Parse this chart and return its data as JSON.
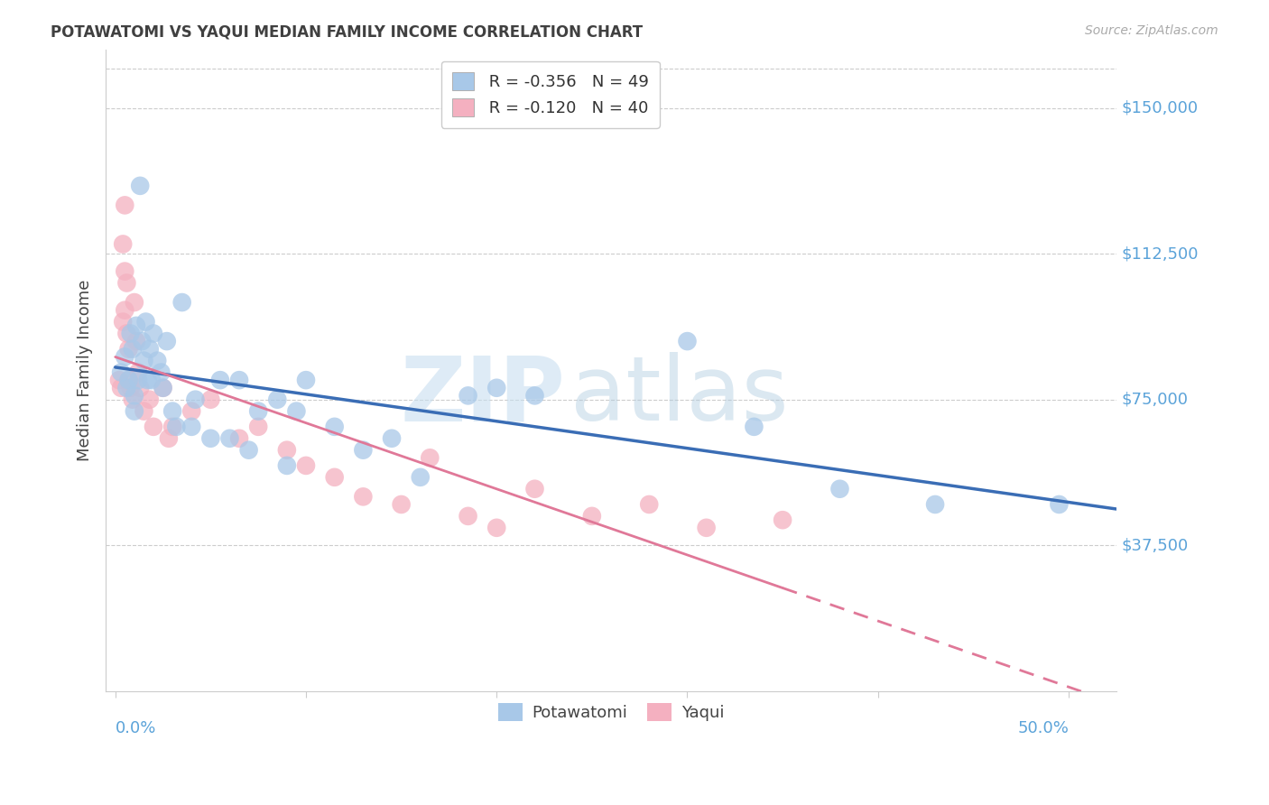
{
  "title": "POTAWATOMI VS YAQUI MEDIAN FAMILY INCOME CORRELATION CHART",
  "source": "Source: ZipAtlas.com",
  "ylabel": "Median Family Income",
  "ytick_labels": [
    "$37,500",
    "$75,000",
    "$112,500",
    "$150,000"
  ],
  "ytick_values": [
    37500,
    75000,
    112500,
    150000
  ],
  "ymin": 0,
  "ymax": 165000,
  "xmin": -0.005,
  "xmax": 0.525,
  "legend_blue_r": "-0.356",
  "legend_blue_n": "49",
  "legend_pink_r": "-0.120",
  "legend_pink_n": "40",
  "blue_scatter_color": "#a8c8e8",
  "pink_scatter_color": "#f4b0c0",
  "blue_line_color": "#3a6db5",
  "pink_line_color": "#e07898",
  "axis_label_color": "#5ba3d9",
  "title_color": "#404040",
  "grid_color": "#cccccc",
  "source_color": "#aaaaaa",
  "potawatomi_x": [
    0.003,
    0.005,
    0.006,
    0.007,
    0.008,
    0.009,
    0.01,
    0.01,
    0.011,
    0.012,
    0.013,
    0.014,
    0.015,
    0.016,
    0.017,
    0.018,
    0.019,
    0.02,
    0.022,
    0.024,
    0.025,
    0.027,
    0.03,
    0.032,
    0.035,
    0.04,
    0.042,
    0.05,
    0.055,
    0.06,
    0.065,
    0.07,
    0.075,
    0.085,
    0.09,
    0.095,
    0.1,
    0.115,
    0.13,
    0.145,
    0.16,
    0.185,
    0.2,
    0.22,
    0.3,
    0.335,
    0.38,
    0.43,
    0.495
  ],
  "potawatomi_y": [
    82000,
    86000,
    78000,
    80000,
    92000,
    88000,
    76000,
    72000,
    94000,
    80000,
    130000,
    90000,
    85000,
    95000,
    80000,
    88000,
    80000,
    92000,
    85000,
    82000,
    78000,
    90000,
    72000,
    68000,
    100000,
    68000,
    75000,
    65000,
    80000,
    65000,
    80000,
    62000,
    72000,
    75000,
    58000,
    72000,
    80000,
    68000,
    62000,
    65000,
    55000,
    76000,
    78000,
    76000,
    90000,
    68000,
    52000,
    48000,
    48000
  ],
  "yaqui_x": [
    0.002,
    0.003,
    0.004,
    0.004,
    0.005,
    0.005,
    0.005,
    0.006,
    0.006,
    0.007,
    0.007,
    0.008,
    0.009,
    0.01,
    0.011,
    0.012,
    0.013,
    0.015,
    0.018,
    0.02,
    0.025,
    0.028,
    0.03,
    0.04,
    0.05,
    0.065,
    0.075,
    0.09,
    0.1,
    0.115,
    0.13,
    0.15,
    0.165,
    0.185,
    0.2,
    0.22,
    0.25,
    0.28,
    0.31,
    0.35
  ],
  "yaqui_y": [
    80000,
    78000,
    95000,
    115000,
    125000,
    108000,
    98000,
    92000,
    105000,
    88000,
    80000,
    78000,
    75000,
    100000,
    90000,
    82000,
    78000,
    72000,
    75000,
    68000,
    78000,
    65000,
    68000,
    72000,
    75000,
    65000,
    68000,
    62000,
    58000,
    55000,
    50000,
    48000,
    60000,
    45000,
    42000,
    52000,
    45000,
    48000,
    42000,
    44000
  ]
}
